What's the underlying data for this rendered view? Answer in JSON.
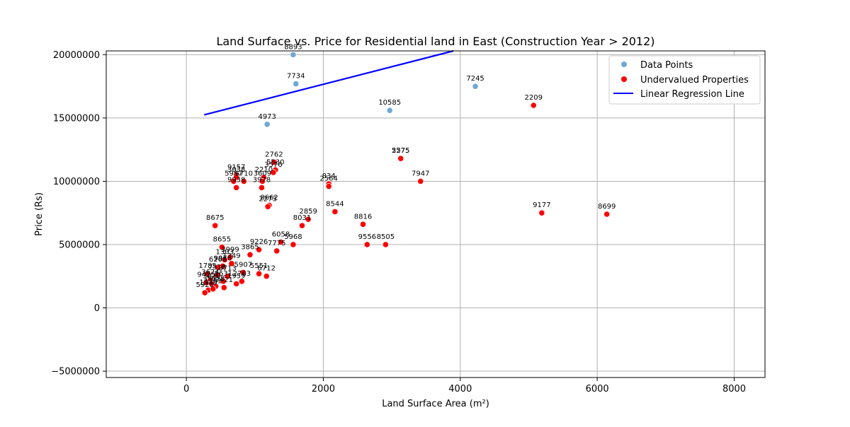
{
  "chart_data": {
    "type": "scatter",
    "title": "Land Surface vs. Price for Residential land in East (Construction Year > 2012)",
    "xlabel": "Land Surface Area (m²)",
    "ylabel": "Price (Rs)",
    "xlim": [
      -1170,
      8450
    ],
    "ylim": [
      -5500000,
      20300000
    ],
    "xticks": [
      0,
      2000,
      4000,
      6000,
      8000
    ],
    "yticks": [
      -5000000,
      0,
      5000000,
      10000000,
      15000000,
      20000000
    ],
    "xtick_labels": [
      "0",
      "2000",
      "4000",
      "6000",
      "8000"
    ],
    "ytick_labels": [
      "−5000000",
      "0",
      "5000000",
      "10000000",
      "15000000",
      "20000000"
    ],
    "grid": true,
    "legend_position": "top-right",
    "colors": {
      "data_points": "#6fa8d6",
      "undervalued": "#ff0000",
      "regression": "#0000ff"
    },
    "legend": [
      {
        "label": "Data Points",
        "kind": "dot",
        "color": "#6fa8d6"
      },
      {
        "label": "Undervalued Properties",
        "kind": "dot",
        "color": "#ff0000"
      },
      {
        "label": "Linear Regression Line",
        "kind": "line",
        "color": "#0000ff"
      }
    ],
    "regression_line": {
      "x": [
        260,
        3900
      ],
      "y": [
        15250000,
        20300000
      ]
    },
    "series": [
      {
        "name": "Data Points",
        "points": [
          {
            "x": 1560,
            "y": 20000000,
            "label": "8893"
          },
          {
            "x": 1600,
            "y": 17700000,
            "label": "7734"
          },
          {
            "x": 4220,
            "y": 17500000,
            "label": "7245"
          },
          {
            "x": 2970,
            "y": 15600000,
            "label": "10585"
          },
          {
            "x": 1180,
            "y": 14500000,
            "label": "4973"
          }
        ]
      },
      {
        "name": "Undervalued Properties",
        "points": [
          {
            "x": 5070,
            "y": 16000000,
            "label": "2209"
          },
          {
            "x": 3130,
            "y": 11800000,
            "label": "2275"
          },
          {
            "x": 3130,
            "y": 11800000,
            "label": "5575"
          },
          {
            "x": 3420,
            "y": 10000000,
            "label": "7947"
          },
          {
            "x": 1280,
            "y": 11500000,
            "label": "2762"
          },
          {
            "x": 1300,
            "y": 10900000,
            "label": "5530"
          },
          {
            "x": 1270,
            "y": 10700000,
            "label": "3576"
          },
          {
            "x": 1130,
            "y": 10300000,
            "label": "2210"
          },
          {
            "x": 1110,
            "y": 10000000,
            "label": "3609"
          },
          {
            "x": 1100,
            "y": 9500000,
            "label": "3978"
          },
          {
            "x": 730,
            "y": 10500000,
            "label": "9157"
          },
          {
            "x": 730,
            "y": 10300000,
            "label": "3038"
          },
          {
            "x": 690,
            "y": 10000000,
            "label": "5957"
          },
          {
            "x": 840,
            "y": 10000000,
            "label": "6710"
          },
          {
            "x": 730,
            "y": 9500000,
            "label": "9938"
          },
          {
            "x": 2080,
            "y": 9800000,
            "label": "834"
          },
          {
            "x": 2080,
            "y": 9600000,
            "label": "2564"
          },
          {
            "x": 1210,
            "y": 8100000,
            "label": "8662"
          },
          {
            "x": 1190,
            "y": 8000000,
            "label": "2273"
          },
          {
            "x": 1780,
            "y": 7000000,
            "label": "2859"
          },
          {
            "x": 2170,
            "y": 7600000,
            "label": "8544"
          },
          {
            "x": 1690,
            "y": 6500000,
            "label": "8031"
          },
          {
            "x": 2580,
            "y": 6600000,
            "label": "8816"
          },
          {
            "x": 5190,
            "y": 7500000,
            "label": "9177"
          },
          {
            "x": 6140,
            "y": 7400000,
            "label": "8699"
          },
          {
            "x": 420,
            "y": 6500000,
            "label": "8675"
          },
          {
            "x": 1380,
            "y": 5200000,
            "label": "6058"
          },
          {
            "x": 1560,
            "y": 5000000,
            "label": "5968"
          },
          {
            "x": 2640,
            "y": 5000000,
            "label": "9556"
          },
          {
            "x": 2910,
            "y": 5000000,
            "label": "8505"
          },
          {
            "x": 1060,
            "y": 4600000,
            "label": "9226"
          },
          {
            "x": 1320,
            "y": 4500000,
            "label": "7775"
          },
          {
            "x": 930,
            "y": 4200000,
            "label": "3865"
          },
          {
            "x": 520,
            "y": 4800000,
            "label": "8655"
          },
          {
            "x": 640,
            "y": 4000000,
            "label": "3999"
          },
          {
            "x": 560,
            "y": 3800000,
            "label": "1303"
          },
          {
            "x": 660,
            "y": 3500000,
            "label": "1349"
          },
          {
            "x": 530,
            "y": 3300000,
            "label": "9976"
          },
          {
            "x": 460,
            "y": 3200000,
            "label": "6268"
          },
          {
            "x": 830,
            "y": 2800000,
            "label": "5907"
          },
          {
            "x": 1060,
            "y": 2700000,
            "label": "5551"
          },
          {
            "x": 1170,
            "y": 2500000,
            "label": "6712"
          },
          {
            "x": 600,
            "y": 2500000,
            "label": "3713"
          },
          {
            "x": 310,
            "y": 2700000,
            "label": "1785"
          },
          {
            "x": 450,
            "y": 2600000,
            "label": "7518"
          },
          {
            "x": 350,
            "y": 2200000,
            "label": "3624"
          },
          {
            "x": 540,
            "y": 2100000,
            "label": "1631"
          },
          {
            "x": 810,
            "y": 2100000,
            "label": "2763"
          },
          {
            "x": 730,
            "y": 1900000,
            "label": "1959"
          },
          {
            "x": 290,
            "y": 2000000,
            "label": "9425"
          },
          {
            "x": 370,
            "y": 1900000,
            "label": "3020"
          },
          {
            "x": 430,
            "y": 1700000,
            "label": "5818"
          },
          {
            "x": 550,
            "y": 1600000,
            "label": "2421"
          },
          {
            "x": 320,
            "y": 1400000,
            "label": "1535"
          },
          {
            "x": 270,
            "y": 1200000,
            "label": "5920"
          },
          {
            "x": 390,
            "y": 1500000,
            "label": "1281"
          }
        ]
      }
    ]
  }
}
